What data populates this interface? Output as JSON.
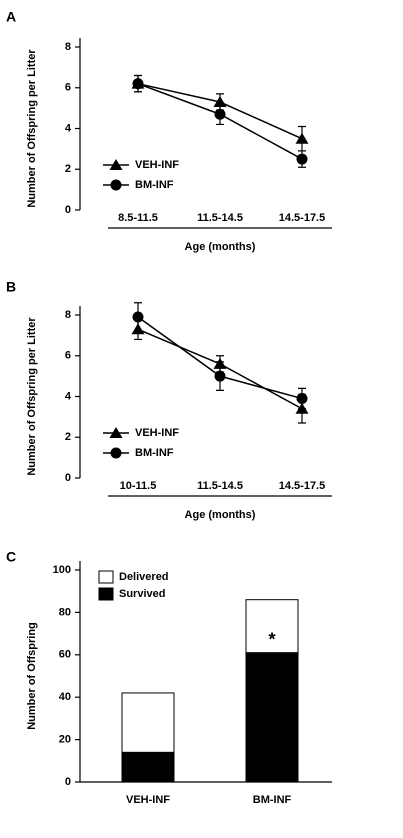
{
  "chart_data": [
    {
      "type": "line",
      "label": "A",
      "ylabel": "Number of Offspring per Litter",
      "xlabel": "Age (months)",
      "categories": [
        "8.5-11.5",
        "11.5-14.5",
        "14.5-17.5"
      ],
      "ylim": [
        0,
        8
      ],
      "yticks": [
        0,
        2,
        4,
        6,
        8
      ],
      "legend": "lower left",
      "series": [
        {
          "name": "VEH-INF",
          "color": "#000000",
          "marker": "triangle",
          "values": [
            6.2,
            5.3,
            3.5
          ],
          "errors": [
            0.4,
            0.4,
            0.6
          ]
        },
        {
          "name": "BM-INF",
          "color": "#000000",
          "marker": "circle",
          "values": [
            6.2,
            4.7,
            2.5
          ],
          "errors": [
            0.4,
            0.5,
            0.4
          ]
        }
      ]
    },
    {
      "type": "line",
      "label": "B",
      "ylabel": "Number of Offspring per Litter",
      "xlabel": "Age (months)",
      "categories": [
        "10-11.5",
        "11.5-14.5",
        "14.5-17.5"
      ],
      "ylim": [
        0,
        8
      ],
      "yticks": [
        0,
        2,
        4,
        6,
        8
      ],
      "legend": "lower left",
      "series": [
        {
          "name": "VEH-INF",
          "color": "#000000",
          "marker": "triangle",
          "values": [
            7.3,
            5.6,
            3.4
          ],
          "errors": [
            0.5,
            0.4,
            0.7
          ]
        },
        {
          "name": "BM-INF",
          "color": "#000000",
          "marker": "circle",
          "values": [
            7.9,
            5.0,
            3.9
          ],
          "errors": [
            0.7,
            0.7,
            0.5
          ]
        }
      ]
    },
    {
      "type": "bar",
      "label": "C",
      "ylabel": "Number of Offspring",
      "categories": [
        "VEH-INF",
        "BM-INF"
      ],
      "ylim": [
        0,
        100
      ],
      "yticks": [
        0,
        20,
        40,
        60,
        80,
        100
      ],
      "legend": "upper left",
      "annotation": "*",
      "series": [
        {
          "name": "Delivered",
          "color": "#ffffff",
          "values": [
            42,
            86
          ]
        },
        {
          "name": "Survived",
          "color": "#000000",
          "values": [
            14,
            61
          ]
        }
      ]
    }
  ]
}
